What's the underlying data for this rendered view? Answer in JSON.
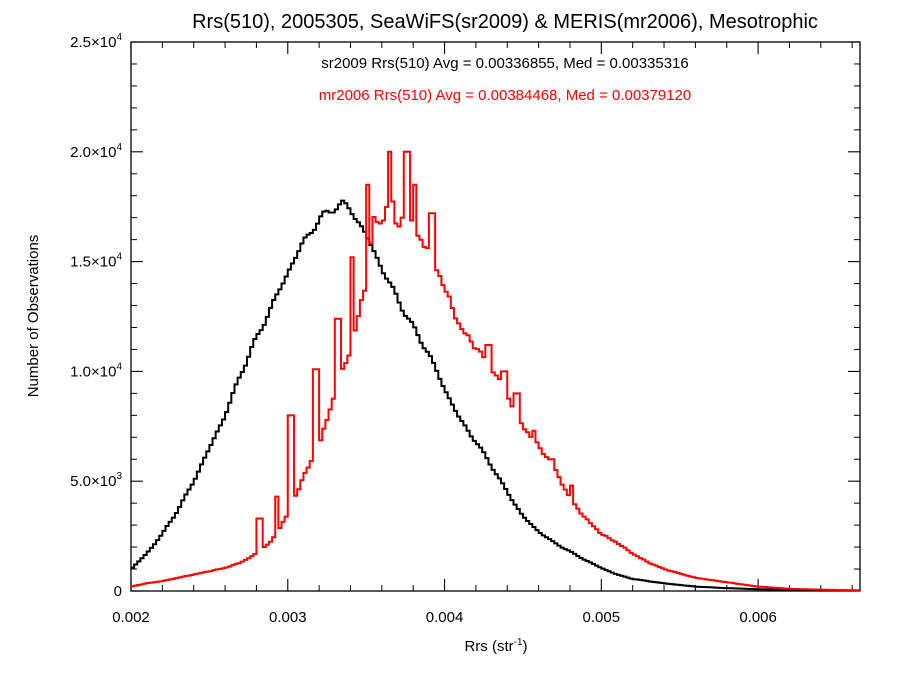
{
  "chart_data": {
    "type": "line",
    "step": true,
    "title": "Rrs(510), 2005305, SeaWiFS(sr2009) & MERIS(mr2006), Mesotrophic",
    "xlabel_main": "Rrs (str",
    "xlabel_sup": "-1",
    "xlabel_close": ")",
    "ylabel": "Number of Observations",
    "xlim": [
      0.002,
      0.00665
    ],
    "ylim": [
      0,
      25000
    ],
    "grid": false,
    "xticks": [
      {
        "value": 0.002,
        "label": "0.002"
      },
      {
        "value": 0.003,
        "label": "0.003"
      },
      {
        "value": 0.004,
        "label": "0.004"
      },
      {
        "value": 0.005,
        "label": "0.005"
      },
      {
        "value": 0.006,
        "label": "0.006"
      }
    ],
    "yticks": [
      {
        "value": 0,
        "mant": "0",
        "exp": ""
      },
      {
        "value": 5000,
        "mant": "5.0×10",
        "exp": "3"
      },
      {
        "value": 10000,
        "mant": "1.0×10",
        "exp": "4"
      },
      {
        "value": 15000,
        "mant": "1.5×10",
        "exp": "4"
      },
      {
        "value": 20000,
        "mant": "2.0×10",
        "exp": "4"
      },
      {
        "value": 25000,
        "mant": "2.5×10",
        "exp": "4"
      }
    ],
    "annotations": [
      {
        "text": "sr2009 Rrs(510) Avg = 0.00336855, Med = 0.00335316",
        "color": "#000000"
      },
      {
        "text": "mr2006 Rrs(510) Avg = 0.00384468, Med = 0.00379120",
        "color": "#ff0000"
      }
    ],
    "series": [
      {
        "color": "#000000",
        "x": [
          0.002,
          0.0021,
          0.0022,
          0.0023,
          0.0024,
          0.0025,
          0.0026,
          0.0027,
          0.0028,
          0.0029,
          0.003,
          0.0031,
          0.0032,
          0.0033,
          0.00335,
          0.0034,
          0.0035,
          0.0036,
          0.0037,
          0.0038,
          0.0039,
          0.004,
          0.0041,
          0.0042,
          0.0043,
          0.0044,
          0.0045,
          0.0046,
          0.0047,
          0.0048,
          0.0049,
          0.005,
          0.0051,
          0.0052,
          0.0054,
          0.0056,
          0.0058,
          0.006,
          0.0062,
          0.0064,
          0.00665
        ],
        "y": [
          1000,
          1700,
          2600,
          3700,
          5000,
          6500,
          8000,
          9900,
          11500,
          13000,
          14500,
          15900,
          16900,
          17500,
          17600,
          17400,
          16200,
          14700,
          13300,
          12000,
          10800,
          9200,
          7800,
          6800,
          5700,
          4500,
          3400,
          2700,
          2200,
          1800,
          1400,
          1050,
          750,
          550,
          350,
          200,
          130,
          80,
          50,
          30,
          20
        ]
      },
      {
        "color": "#ff0000",
        "x": [
          0.002,
          0.0021,
          0.0022,
          0.0023,
          0.0024,
          0.0025,
          0.0026,
          0.0027,
          0.0028,
          0.0029,
          0.003,
          0.0031,
          0.0032,
          0.0033,
          0.0034,
          0.0035,
          0.00355,
          0.0036,
          0.00365,
          0.0037,
          0.00375,
          0.0038,
          0.00385,
          0.0039,
          0.00395,
          0.004,
          0.0041,
          0.0042,
          0.0043,
          0.0044,
          0.0045,
          0.0046,
          0.0047,
          0.0048,
          0.0049,
          0.005,
          0.0051,
          0.0052,
          0.0053,
          0.0054,
          0.0055,
          0.0056,
          0.0058,
          0.006,
          0.0062,
          0.0064,
          0.00665
        ],
        "y": [
          200,
          350,
          450,
          600,
          750,
          900,
          1050,
          1300,
          1700,
          2300,
          3500,
          5200,
          6600,
          9000,
          11000,
          14000,
          17000,
          16500,
          18500,
          16300,
          17500,
          16500,
          16000,
          15500,
          14700,
          13800,
          12000,
          11100,
          10200,
          8900,
          7500,
          6600,
          5600,
          4200,
          3300,
          2600,
          2200,
          1700,
          1300,
          1000,
          800,
          600,
          400,
          200,
          100,
          60,
          30
        ],
        "spikes": [
          {
            "x": 0.00351,
            "y": 18500
          },
          {
            "x": 0.00365,
            "y": 20000
          },
          {
            "x": 0.00376,
            "y": 20000
          },
          {
            "x": 0.00381,
            "y": 18500
          },
          {
            "x": 0.00392,
            "y": 17200
          },
          {
            "x": 0.00341,
            "y": 15200
          },
          {
            "x": 0.00332,
            "y": 12400
          },
          {
            "x": 0.00318,
            "y": 10100
          },
          {
            "x": 0.00302,
            "y": 8000
          },
          {
            "x": 0.00428,
            "y": 11200
          },
          {
            "x": 0.00438,
            "y": 10000
          },
          {
            "x": 0.00446,
            "y": 9000
          },
          {
            "x": 0.00457,
            "y": 7300
          },
          {
            "x": 0.00468,
            "y": 6000
          },
          {
            "x": 0.00481,
            "y": 4800
          },
          {
            "x": 0.00293,
            "y": 4300
          },
          {
            "x": 0.00282,
            "y": 3300
          }
        ]
      }
    ]
  }
}
